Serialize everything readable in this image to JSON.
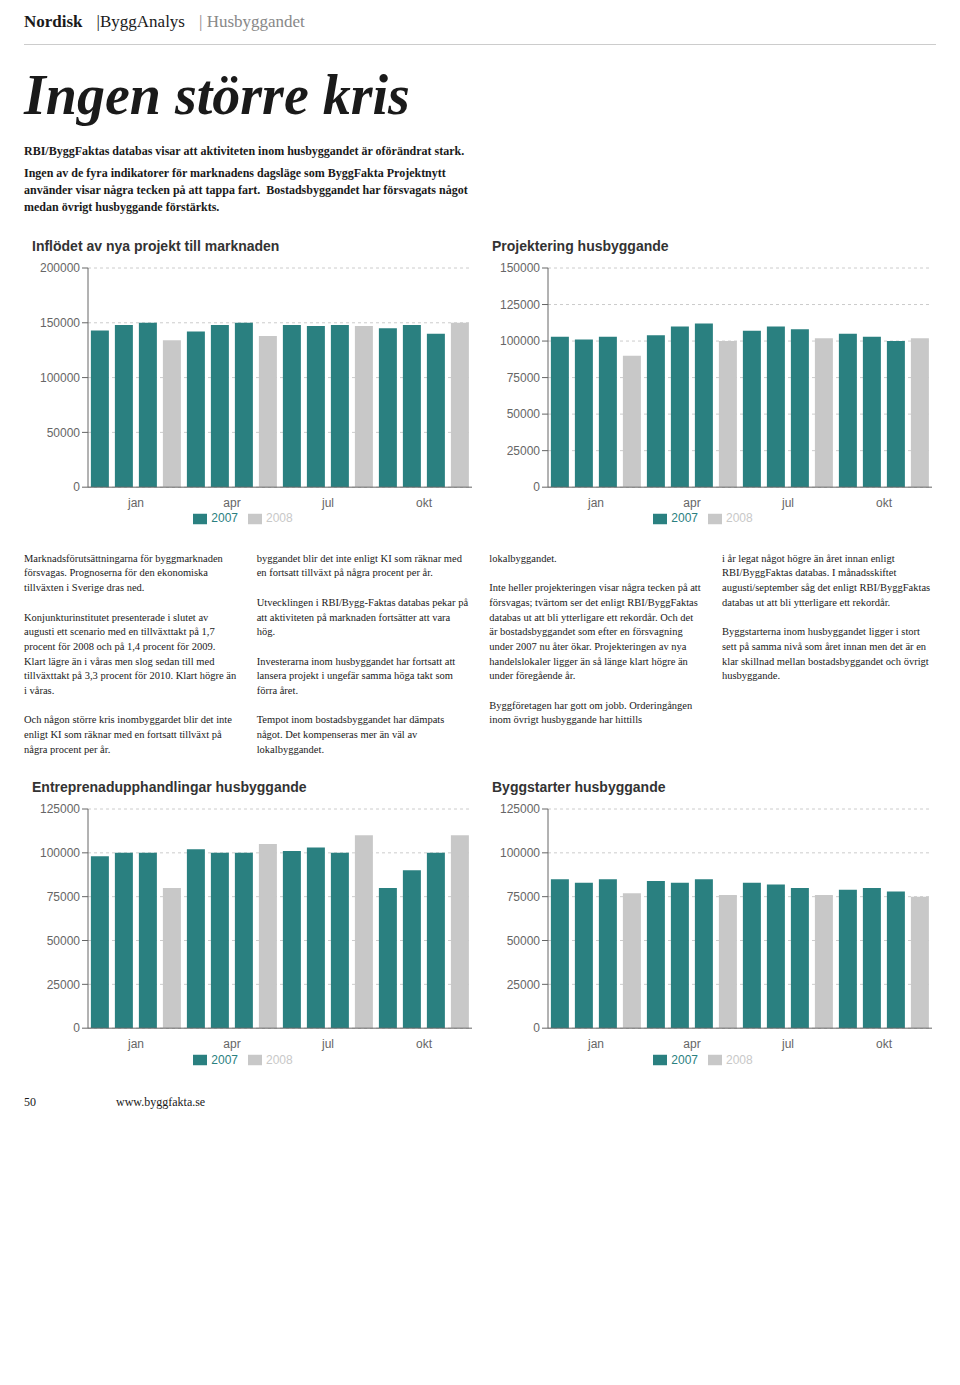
{
  "title": "Ingen större kris",
  "annotations": [
    "Nordisk",
    "|ByggAnalys",
    "| Husbyggandet",
    "RBI/ByggFaktas databas visar att aktiviteten inom husbyggandet är oförändrat stark.",
    "Ingen av de fyra indikatorer för marknadens dagsläge som ByggFakta Projektnytt\nanvänder visar några tecken på att tappa fart.  Bostadsbyggandet har försvagats något\nmedan övrigt husbyggande förstärkts.",
    "Marknadsförutsättningarna för byggmarknaden försvagas. Prognoserna för den ekonomiska tillväxten i Sverige dras ned.\n\nKonjunkturinstitutet presenterade i slutet av augusti ett scenario med en tillväxttakt på 1,7 procent för 2008 och på 1,4 procent för 2009. Klart lägre än i våras men slog sedan till med tillväxttakt på 3,3 procent för 2010. Klart högre än i våras.\n\nOch någon större kris inombyggardet blir det inte enligt KI som räknar med en fortsatt tillväxt på några procent per år.",
    "byggandet blir det inte enligt KI som räknar med en fortsatt tillväxt på några procent per år.\n\nUtvecklingen i RBI/Bygg-Faktas databas pekar på att aktiviteten på marknaden fortsätter att vara hög.\n\nInvesterarna inom husbyggandet har fortsatt att lansera projekt i ungefär samma höga takt som förra året.\n\nTempot inom bostadsbyggandet har dämpats något. Det kompenseras mer än väl av lokalbyggandet.",
    "lokalbyggandet.\n\nInte heller projekteringen visar några tecken på att försvagas; tvärtom ser det enligt RBI/ByggFaktas databas ut att bli ytterligare ett rekordår. Och det är bostadsbyggandet som efter en försvagning under 2007 nu åter ökar. Projekteringen av nya handelslokaler ligger än så länge klart högre än under föregående år.\n\nByggföretagen har gott om jobb. Orderingången inom övrigt husbyggande har hittills",
    "i år legat något högre än året innan enligt RBI/ByggFaktas databas. I månadsskiftet augusti/september såg det enligt RBI/ByggFaktas databas ut att bli ytterligare ett rekordår.\n\nByggstarterna inom husbyggandet ligger i stort sett på samma nivå som året innan men det är en klar skillnad mellan bostadsbyggandet och övrigt husbyggande.",
    "50",
    "www.byggfakta.se"
  ],
  "chart_data": [
    {
      "type": "bar",
      "title": "Inflödet av nya projekt till marknaden",
      "categories": [
        null,
        "jan",
        null,
        null,
        null,
        "apr",
        null,
        null,
        null,
        "jul",
        null,
        null,
        null,
        "okt",
        null,
        null
      ],
      "series": [
        {
          "name": "2007",
          "color": "#2a8080",
          "values": [
            143000,
            148000,
            150000,
            null,
            142000,
            148000,
            150000,
            null,
            148000,
            147000,
            148000,
            null,
            145000,
            148000,
            140000,
            null
          ]
        },
        {
          "name": "2008",
          "color": "#c8c8c8",
          "values": [
            null,
            null,
            null,
            134000,
            null,
            null,
            null,
            138000,
            null,
            null,
            null,
            147000,
            null,
            null,
            null,
            150000
          ]
        }
      ],
      "ylim": [
        0,
        200000
      ],
      "yticks": [
        0,
        50000,
        100000,
        150000,
        200000
      ],
      "grid": true,
      "legend": "bottom"
    },
    {
      "type": "bar",
      "title": "Projektering husbyggande",
      "categories": [
        null,
        "jan",
        null,
        null,
        null,
        "apr",
        null,
        null,
        null,
        "jul",
        null,
        null,
        null,
        "okt",
        null,
        null
      ],
      "series": [
        {
          "name": "2007",
          "color": "#2a8080",
          "values": [
            103000,
            101000,
            103000,
            null,
            104000,
            110000,
            112000,
            null,
            107000,
            110000,
            108000,
            null,
            105000,
            103000,
            100000,
            null
          ]
        },
        {
          "name": "2008",
          "color": "#c8c8c8",
          "values": [
            null,
            null,
            null,
            90000,
            null,
            null,
            null,
            100000,
            null,
            null,
            null,
            102000,
            null,
            null,
            null,
            102000
          ]
        }
      ],
      "ylim": [
        0,
        150000
      ],
      "yticks": [
        0,
        25000,
        50000,
        75000,
        100000,
        125000,
        150000
      ],
      "grid": true,
      "legend": "bottom"
    },
    {
      "type": "bar",
      "title": "Entreprenadupphandlingar husbyggande",
      "categories": [
        null,
        "jan",
        null,
        null,
        null,
        "apr",
        null,
        null,
        null,
        "jul",
        null,
        null,
        null,
        "okt",
        null,
        null
      ],
      "series": [
        {
          "name": "2007",
          "color": "#2a8080",
          "values": [
            98000,
            100000,
            100000,
            null,
            102000,
            100000,
            100000,
            null,
            101000,
            103000,
            100000,
            null,
            80000,
            90000,
            100000,
            null
          ]
        },
        {
          "name": "2008",
          "color": "#c8c8c8",
          "values": [
            null,
            null,
            null,
            80000,
            null,
            null,
            null,
            105000,
            null,
            null,
            null,
            110000,
            null,
            null,
            null,
            110000
          ]
        }
      ],
      "ylim": [
        0,
        125000
      ],
      "yticks": [
        0,
        25000,
        50000,
        75000,
        100000,
        125000
      ],
      "grid": true,
      "legend": "bottom"
    },
    {
      "type": "bar",
      "title": "Byggstarter husbyggande",
      "categories": [
        null,
        "jan",
        null,
        null,
        null,
        "apr",
        null,
        null,
        null,
        "jul",
        null,
        null,
        null,
        "okt",
        null,
        null
      ],
      "series": [
        {
          "name": "2007",
          "color": "#2a8080",
          "values": [
            85000,
            83000,
            85000,
            null,
            84000,
            83000,
            85000,
            null,
            83000,
            82000,
            80000,
            null,
            79000,
            80000,
            78000,
            null
          ]
        },
        {
          "name": "2008",
          "color": "#c8c8c8",
          "values": [
            null,
            null,
            null,
            77000,
            null,
            null,
            null,
            76000,
            null,
            null,
            null,
            76000,
            null,
            null,
            null,
            75000
          ]
        }
      ],
      "ylim": [
        0,
        125000
      ],
      "yticks": [
        0,
        25000,
        50000,
        75000,
        100000,
        125000
      ],
      "grid": true,
      "legend": "bottom"
    }
  ]
}
